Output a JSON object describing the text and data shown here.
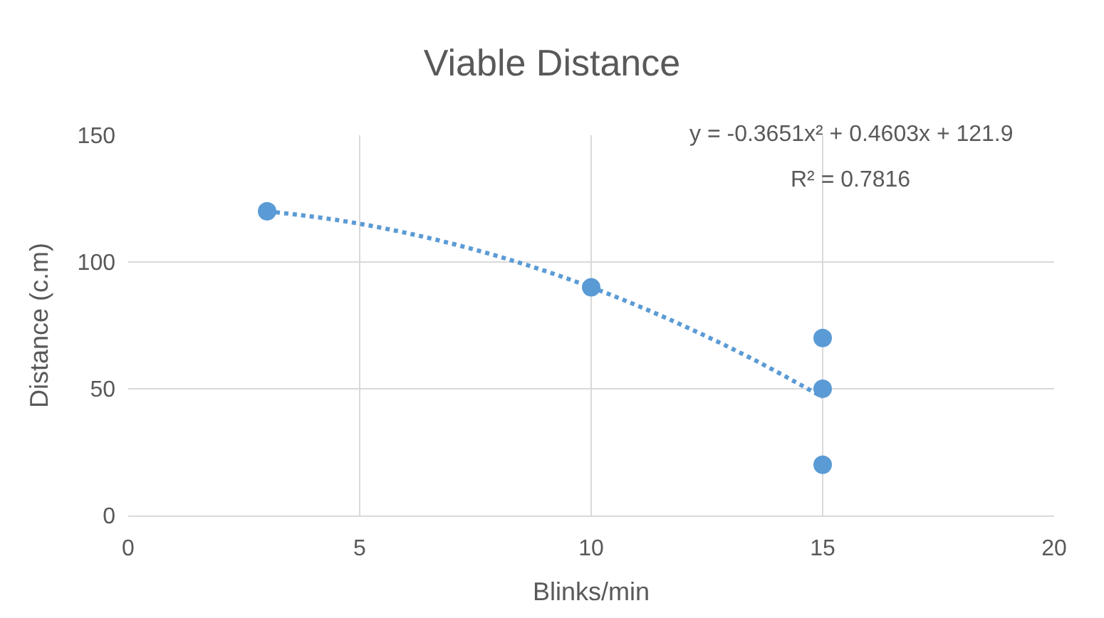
{
  "chart_data": {
    "type": "scatter",
    "title": "Viable Distance",
    "xlabel": "Blinks/min",
    "ylabel": "Distance (c.m)",
    "xlim": [
      0,
      20
    ],
    "xticks": [
      0,
      5,
      10,
      15,
      20
    ],
    "ylim": [
      0,
      150
    ],
    "yticks": [
      0,
      50,
      100,
      150
    ],
    "grid": true,
    "series": [
      {
        "color": "#5b9bd5",
        "marker": "circle",
        "x": [
          3,
          10,
          15,
          15,
          15
        ],
        "values": [
          120,
          90,
          70,
          50,
          20
        ]
      },
      {
        "type": "line",
        "color": "#5b9bd5",
        "line_style": "dotted",
        "marker": "none",
        "x": [
          3,
          4.5,
          6,
          7.5,
          9,
          10.5,
          12,
          13.5,
          15
        ],
        "values": [
          120,
          116.6,
          111.5,
          104.8,
          96.5,
          86.5,
          74.8,
          61.6,
          46.7
        ]
      }
    ],
    "annotations": [
      "y = -0.3651x² + 0.4603x + 121.9",
      "R² = 0.7816"
    ]
  }
}
